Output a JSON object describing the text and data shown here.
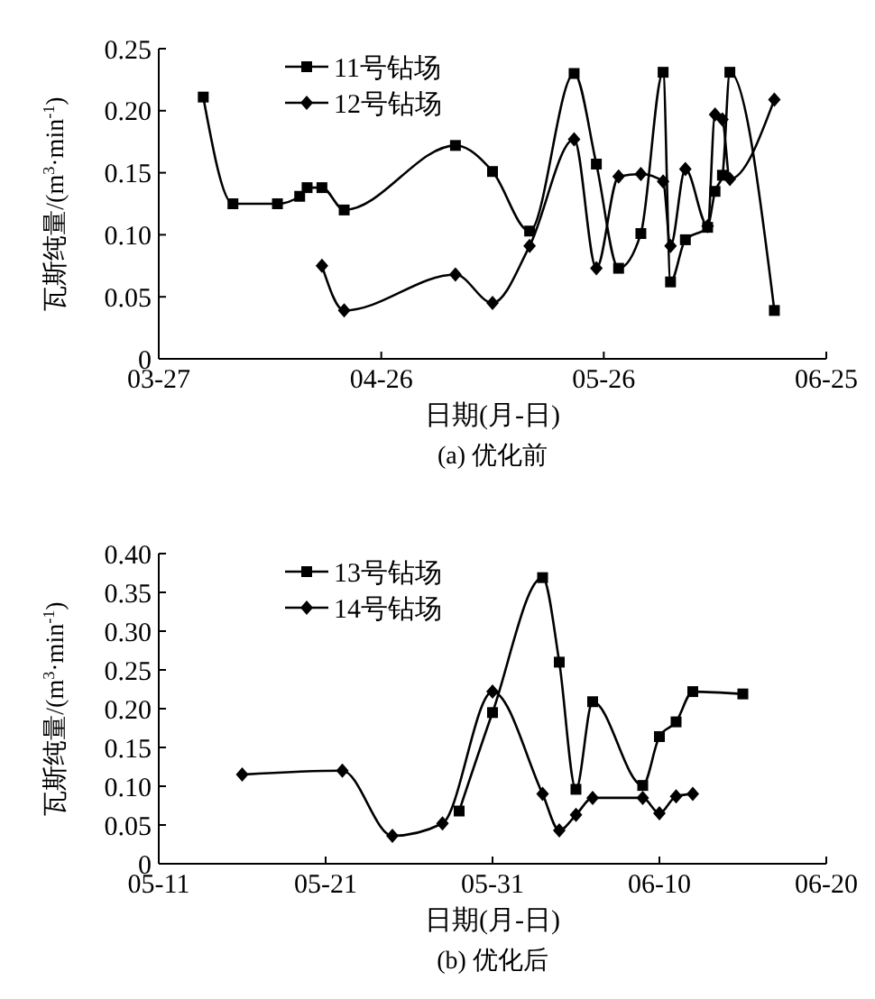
{
  "chart_data": [
    {
      "type": "line",
      "title": "(a) 优化前",
      "xlabel": "日期(月-日)",
      "ylabel": "瓦斯纯量/(m$^{3}$·min$^{-1}$)",
      "xlim": [
        "--03-27",
        "--06-25"
      ],
      "xticks": [
        {
          "value": "--03-27",
          "label": "03-27"
        },
        {
          "value": "--04-26",
          "label": "04-26"
        },
        {
          "value": "--05-26",
          "label": "05-26"
        },
        {
          "value": "--06-25",
          "label": "06-25"
        }
      ],
      "ylim": [
        0,
        0.25
      ],
      "yticks": [
        {
          "value": 0,
          "label": "0"
        },
        {
          "value": 0.05,
          "label": "0.05"
        },
        {
          "value": 0.1,
          "label": "0.10"
        },
        {
          "value": 0.15,
          "label": "0.15"
        },
        {
          "value": 0.2,
          "label": "0.20"
        },
        {
          "value": 0.25,
          "label": "0.25"
        }
      ],
      "legend": "top left",
      "grid": false,
      "line_style": "solid",
      "series": [
        {
          "name": "11号钻场",
          "color": "#000000",
          "marker": "square",
          "x": [
            "--04-02",
            "--04-06",
            "--04-12",
            "--04-15",
            "--04-16",
            "--04-18",
            "--04-21",
            "--05-06",
            "--05-11",
            "--05-16",
            "--05-22",
            "--05-25",
            "--05-28",
            "--05-31",
            "--06-03",
            "--06-04",
            "--06-06",
            "--06-09",
            "--06-10",
            "--06-11",
            "--06-12",
            "--06-18"
          ],
          "values": [
            0.211,
            0.125,
            0.125,
            0.131,
            0.138,
            0.138,
            0.12,
            0.172,
            0.151,
            0.103,
            0.23,
            0.157,
            0.073,
            0.101,
            0.231,
            0.062,
            0.096,
            0.106,
            0.135,
            0.148,
            0.231,
            0.039
          ]
        },
        {
          "name": "12号钻场",
          "color": "#000000",
          "marker": "diamond",
          "x": [
            "--04-18",
            "--04-21",
            "--05-06",
            "--05-11",
            "--05-16",
            "--05-22",
            "--05-25",
            "--05-28",
            "--05-31",
            "--06-03",
            "--06-04",
            "--06-06",
            "--06-09",
            "--06-10",
            "--06-11",
            "--06-12",
            "--06-18"
          ],
          "values": [
            0.075,
            0.039,
            0.068,
            0.045,
            0.091,
            0.177,
            0.073,
            0.147,
            0.149,
            0.143,
            0.091,
            0.153,
            0.107,
            0.197,
            0.193,
            0.145,
            0.209
          ]
        }
      ]
    },
    {
      "type": "line",
      "title": "(b) 优化后",
      "xlabel": "日期(月-日)",
      "ylabel": "瓦斯纯量/(m$^{3}$·min$^{-1}$)",
      "xlim": [
        "--05-11",
        "--06-20"
      ],
      "xticks": [
        {
          "value": "--05-11",
          "label": "05-11"
        },
        {
          "value": "--05-21",
          "label": "05-21"
        },
        {
          "value": "--05-31",
          "label": "05-31"
        },
        {
          "value": "--06-10",
          "label": "06-10"
        },
        {
          "value": "--06-20",
          "label": "06-20"
        }
      ],
      "ylim": [
        0,
        0.4
      ],
      "yticks": [
        {
          "value": 0,
          "label": "0"
        },
        {
          "value": 0.05,
          "label": "0.05"
        },
        {
          "value": 0.1,
          "label": "0.10"
        },
        {
          "value": 0.15,
          "label": "0.15"
        },
        {
          "value": 0.2,
          "label": "0.20"
        },
        {
          "value": 0.25,
          "label": "0.25"
        },
        {
          "value": 0.3,
          "label": "0.30"
        },
        {
          "value": 0.35,
          "label": "0.35"
        },
        {
          "value": 0.4,
          "label": "0.40"
        }
      ],
      "legend": "top left",
      "grid": false,
      "line_style": "solid",
      "series": [
        {
          "name": "13号钻场",
          "color": "#000000",
          "marker": "square",
          "x": [
            "--05-29",
            "--05-31",
            "--06-03",
            "--06-04",
            "--06-05",
            "--06-06",
            "--06-09",
            "--06-10",
            "--06-11",
            "--06-12",
            "--06-15"
          ],
          "values": [
            0.068,
            0.195,
            0.369,
            0.26,
            0.096,
            0.209,
            0.101,
            0.164,
            0.183,
            0.222,
            0.219
          ]
        },
        {
          "name": "14号钻场",
          "color": "#000000",
          "marker": "diamond",
          "x": [
            "--05-16",
            "--05-22",
            "--05-25",
            "--05-28",
            "--05-31",
            "--06-03",
            "--06-04",
            "--06-05",
            "--06-06",
            "--06-09",
            "--06-10",
            "--06-11",
            "--06-12"
          ],
          "values": [
            0.115,
            0.12,
            0.036,
            0.052,
            0.222,
            0.09,
            0.043,
            0.063,
            0.085,
            0.085,
            0.065,
            0.087,
            0.09
          ]
        }
      ]
    }
  ]
}
